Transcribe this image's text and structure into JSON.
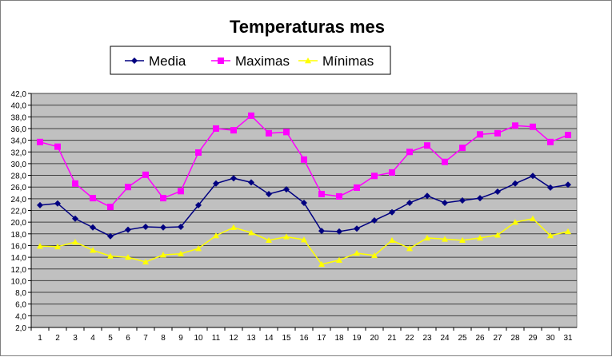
{
  "chart_data": {
    "type": "line",
    "title": "Temperaturas mes",
    "xlabel": "",
    "ylabel": "",
    "ylim": [
      2.0,
      42.0
    ],
    "y_ticks": [
      "2,0",
      "4,0",
      "6,0",
      "8,0",
      "10,0",
      "12,0",
      "14,0",
      "16,0",
      "18,0",
      "20,0",
      "22,0",
      "24,0",
      "26,0",
      "28,0",
      "30,0",
      "32,0",
      "34,0",
      "36,0",
      "38,0",
      "40,0",
      "42,0"
    ],
    "categories": [
      "1",
      "2",
      "3",
      "4",
      "5",
      "6",
      "7",
      "8",
      "9",
      "10",
      "11",
      "12",
      "13",
      "14",
      "15",
      "16",
      "17",
      "18",
      "19",
      "20",
      "21",
      "22",
      "23",
      "24",
      "25",
      "26",
      "27",
      "28",
      "29",
      "30",
      "31"
    ],
    "grid": true,
    "legend_position": "top",
    "series": [
      {
        "name": "Media",
        "color": "#000080",
        "marker": "diamond",
        "values": [
          22.9,
          23.2,
          20.6,
          19.1,
          17.6,
          18.7,
          19.2,
          19.1,
          19.2,
          22.9,
          26.6,
          27.5,
          26.8,
          24.8,
          25.6,
          23.3,
          18.5,
          18.4,
          18.9,
          20.3,
          21.7,
          23.3,
          24.5,
          23.3,
          23.7,
          24.1,
          25.2,
          26.6,
          27.9,
          25.9,
          26.4
        ]
      },
      {
        "name": "Maximas",
        "color": "#ff00ff",
        "marker": "square",
        "values": [
          33.7,
          32.9,
          26.6,
          24.1,
          22.6,
          26.0,
          28.1,
          24.1,
          25.3,
          31.9,
          36.0,
          35.7,
          38.2,
          35.2,
          35.4,
          30.7,
          24.8,
          24.4,
          25.9,
          27.9,
          28.5,
          32.0,
          33.1,
          30.3,
          32.7,
          35.0,
          35.2,
          36.5,
          36.3,
          33.7,
          34.9
        ]
      },
      {
        "name": "Mínimas",
        "color": "#ffff00",
        "marker": "triangle",
        "values": [
          15.9,
          15.8,
          16.6,
          15.2,
          14.2,
          14.0,
          13.2,
          14.4,
          14.6,
          15.5,
          17.7,
          19.1,
          18.2,
          16.9,
          17.5,
          17.0,
          12.8,
          13.5,
          14.7,
          14.3,
          16.9,
          15.5,
          17.3,
          17.1,
          16.9,
          17.3,
          17.8,
          20.0,
          20.6,
          17.7,
          18.4
        ]
      }
    ]
  }
}
